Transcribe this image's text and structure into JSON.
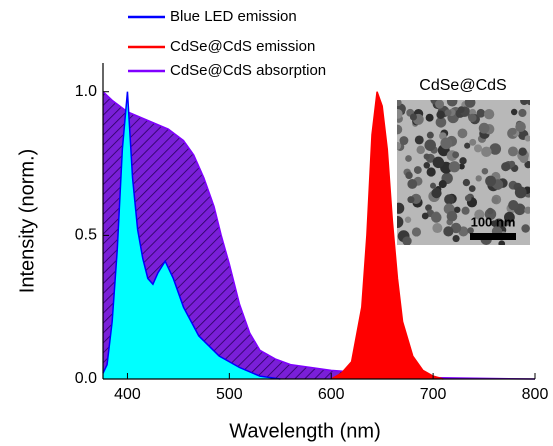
{
  "chart_data": {
    "type": "area",
    "x_label": "Wavelength (nm)",
    "y_label": "Intensity (norm.)",
    "xlim": [
      376,
      800
    ],
    "ylim": [
      0,
      1.1
    ],
    "xticks": [
      400,
      500,
      600,
      700,
      800
    ],
    "yticks": [
      {
        "value": 0,
        "label": "0.0"
      },
      {
        "value": 0.5,
        "label": "0.5"
      },
      {
        "value": 1,
        "label": "1.0"
      }
    ],
    "legend": "upper left",
    "inset_title": "CdSe@CdS",
    "scale_bar": "100 nm",
    "series": [
      {
        "name": "CdSe@CdS absorption",
        "color": "#8000ff",
        "fill": "#7a1fd8",
        "hatch": true,
        "x": [
          376,
          385,
          400,
          420,
          440,
          455,
          465,
          475,
          485,
          492,
          500,
          510,
          520,
          530,
          545,
          560,
          580,
          600,
          620,
          640,
          660,
          700,
          750,
          800
        ],
        "values": [
          1.0,
          0.97,
          0.93,
          0.9,
          0.87,
          0.83,
          0.78,
          0.7,
          0.6,
          0.5,
          0.4,
          0.26,
          0.16,
          0.1,
          0.07,
          0.05,
          0.04,
          0.03,
          0.025,
          0.02,
          0.01,
          0.005,
          0.002,
          0.0
        ]
      },
      {
        "name": "Blue LED emission",
        "color": "#0000ff",
        "fill": "#00ffff",
        "hatch": false,
        "x": [
          376,
          380,
          385,
          390,
          395,
          400,
          405,
          410,
          415,
          420,
          425,
          430,
          437,
          445,
          455,
          470,
          490,
          510,
          530,
          550
        ],
        "values": [
          0.02,
          0.05,
          0.2,
          0.45,
          0.8,
          1.0,
          0.7,
          0.52,
          0.42,
          0.35,
          0.33,
          0.37,
          0.41,
          0.35,
          0.25,
          0.15,
          0.08,
          0.04,
          0.01,
          0.0
        ]
      },
      {
        "name": "CdSe@CdS emission",
        "color": "#ff0000",
        "fill": "#ff0000",
        "hatch": false,
        "x": [
          600,
          610,
          620,
          630,
          635,
          640,
          645,
          650,
          655,
          660,
          665,
          670,
          680,
          690,
          700,
          710
        ],
        "values": [
          0.0,
          0.02,
          0.06,
          0.25,
          0.5,
          0.85,
          1.0,
          0.95,
          0.8,
          0.55,
          0.35,
          0.2,
          0.08,
          0.03,
          0.01,
          0.0
        ]
      }
    ]
  }
}
